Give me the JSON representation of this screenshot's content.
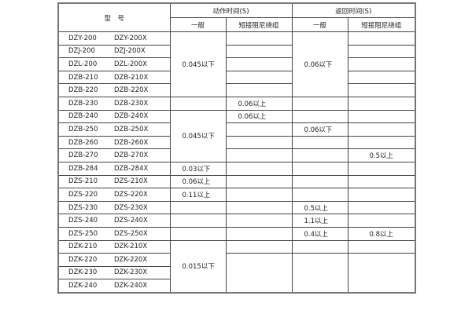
{
  "header": {
    "model": "型　号",
    "action_time": "动作时间(S)",
    "return_time": "返回时间(S)",
    "general": "一般",
    "short_damping": "短接阻尼绕组",
    "general_2": "一般",
    "short_damping_2": "短接阻尼绕组"
  },
  "rows": [
    {
      "model_a": "DZY-200",
      "model_b": "DZY-200X",
      "act_general": "0.045以下",
      "act_short": "",
      "ret_general": "0.06以下",
      "ret_short": ""
    },
    {
      "model_a": "DZJ-200",
      "model_b": "DZJ-200X",
      "act_general": null,
      "act_short": "",
      "ret_general": null,
      "ret_short": ""
    },
    {
      "model_a": "DZL-200",
      "model_b": "DZL-200X",
      "act_general": null,
      "act_short": "",
      "ret_general": null,
      "ret_short": ""
    },
    {
      "model_a": "DZB-210",
      "model_b": "DZB-210X",
      "act_general": null,
      "act_short": "",
      "ret_general": null,
      "ret_short": ""
    },
    {
      "model_a": "DZB-220",
      "model_b": "DZB-220X",
      "act_general": null,
      "act_short": "",
      "ret_general": null,
      "ret_short": ""
    },
    {
      "model_a": "DZB-230",
      "model_b": "DZB-230X",
      "act_general": "",
      "act_short": "0.06以上",
      "ret_general": "",
      "ret_short": ""
    },
    {
      "model_a": "DZB-240",
      "model_b": "DZB-240X",
      "act_general": "0.045以下",
      "act_short": "0.06以上",
      "ret_general": "",
      "ret_short": ""
    },
    {
      "model_a": "DZB-250",
      "model_b": "DZB-250X",
      "act_general": null,
      "act_short": "",
      "ret_general": "0.06以下",
      "ret_short": ""
    },
    {
      "model_a": "DZB-260",
      "model_b": "DZB-260X",
      "act_general": null,
      "act_short": "",
      "ret_general": "",
      "ret_short": ""
    },
    {
      "model_a": "DZB-270",
      "model_b": "DZB-270X",
      "act_general": null,
      "act_short": "",
      "ret_general": "",
      "ret_short": "0.5以上"
    },
    {
      "model_a": "DZB-284",
      "model_b": "DZB-284X",
      "act_general": "0.03以下",
      "act_short": "",
      "ret_general": "",
      "ret_short": ""
    },
    {
      "model_a": "DZS-210",
      "model_b": "DZS-210X",
      "act_general": "0.06以上",
      "act_short": "",
      "ret_general": "",
      "ret_short": ""
    },
    {
      "model_a": "DZS-220",
      "model_b": "DZS-220X",
      "act_general": "0.11以上",
      "act_short": "",
      "ret_general": "",
      "ret_short": ""
    },
    {
      "model_a": "DZS-230",
      "model_b": "DZS-230X",
      "act_general": "",
      "act_short": "",
      "ret_general": "0.5以上",
      "ret_short": ""
    },
    {
      "model_a": "DZS-240",
      "model_b": "DZS-240X",
      "act_general": "",
      "act_short": "",
      "ret_general": "1.1以上",
      "ret_short": ""
    },
    {
      "model_a": "DZS-250",
      "model_b": "DZS-250X",
      "act_general": "",
      "act_short": "",
      "ret_general": "0.4以上",
      "ret_short": "0.8以上"
    },
    {
      "model_a": "DZK-210",
      "model_b": "DZK-210X",
      "act_general": "0.015以下",
      "act_short": "",
      "ret_general": "",
      "ret_short": ""
    },
    {
      "model_a": "DZK-220",
      "model_b": "DZK-220X",
      "act_general": null,
      "act_short": "",
      "ret_general": "",
      "ret_short": ""
    },
    {
      "model_a": "DZK-230",
      "model_b": "DZK-230X",
      "act_general": null,
      "act_short": null,
      "ret_general": null,
      "ret_short": null
    },
    {
      "model_a": "DZK-240",
      "model_b": "DZK-240X",
      "act_general": null,
      "act_short": null,
      "ret_general": null,
      "ret_short": null
    }
  ]
}
